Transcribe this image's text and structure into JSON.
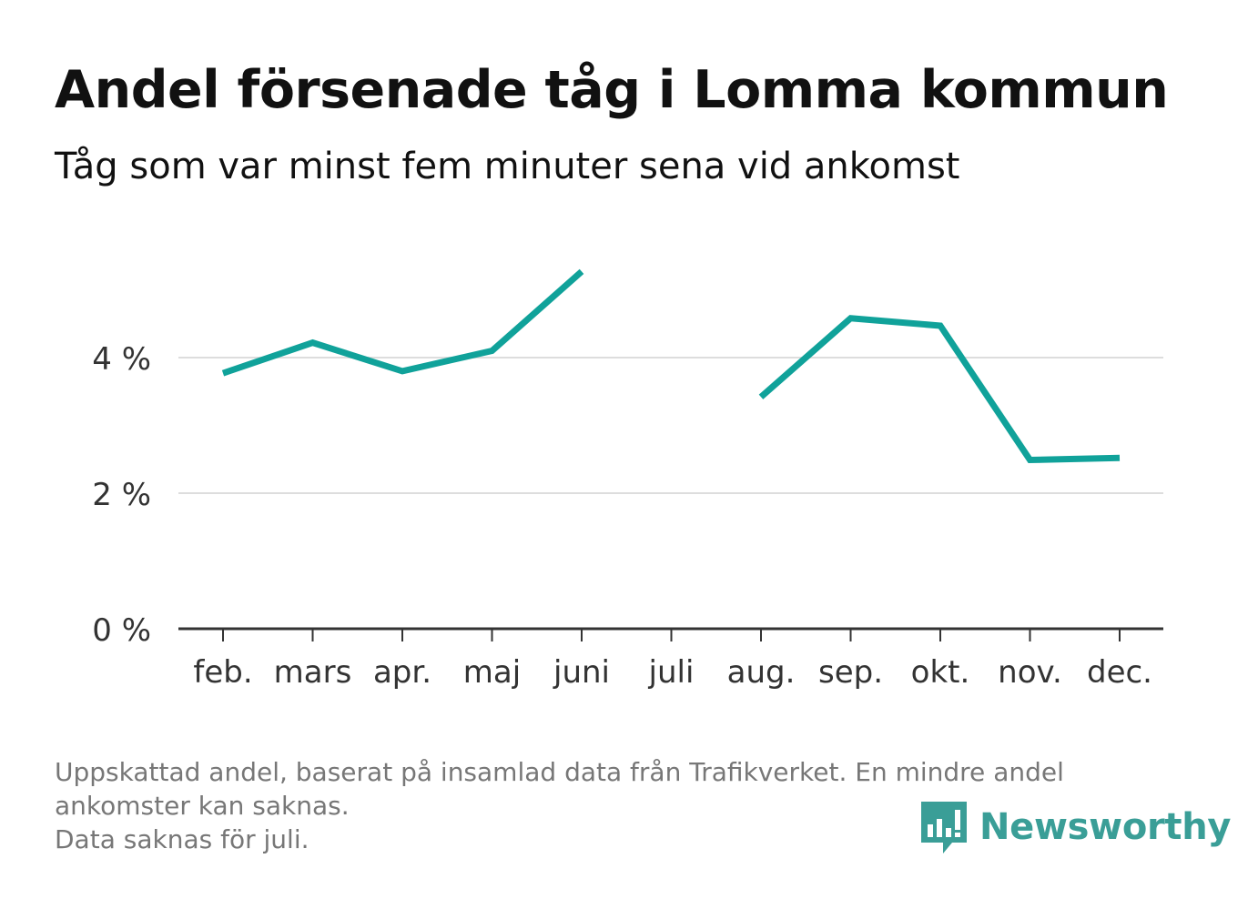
{
  "header": {
    "title": "Andel försenade tåg i Lomma kommun",
    "subtitle": "Tåg som var minst fem minuter sena vid ankomst"
  },
  "footnote": {
    "line1": "Uppskattad andel, baserat på insamlad data från Trafikverket. En mindre andel",
    "line2": "ankomster kan saknas.",
    "line3": "Data saknas för juli."
  },
  "brand": {
    "name": "Newsworthy",
    "logo_icon": "bar-chart-speech-bubble-icon",
    "color": "#3a9e97"
  },
  "chart_data": {
    "type": "line",
    "categories": [
      "feb.",
      "mars",
      "apr.",
      "maj",
      "juni",
      "juli",
      "aug.",
      "sep.",
      "okt.",
      "nov.",
      "dec."
    ],
    "series": [
      {
        "values": [
          3.77,
          4.22,
          3.8,
          4.1,
          5.27,
          null,
          3.42,
          4.58,
          4.47,
          2.49,
          2.52
        ]
      }
    ],
    "y_ticks": [
      0,
      2,
      4
    ],
    "y_tick_labels": [
      "0 %",
      "2 %",
      "4 %"
    ],
    "ylim": [
      0,
      5.5
    ],
    "grid": "horizontal",
    "line_color": "#10a29a",
    "grid_color": "#dddddd",
    "axis_color": "#333333"
  }
}
